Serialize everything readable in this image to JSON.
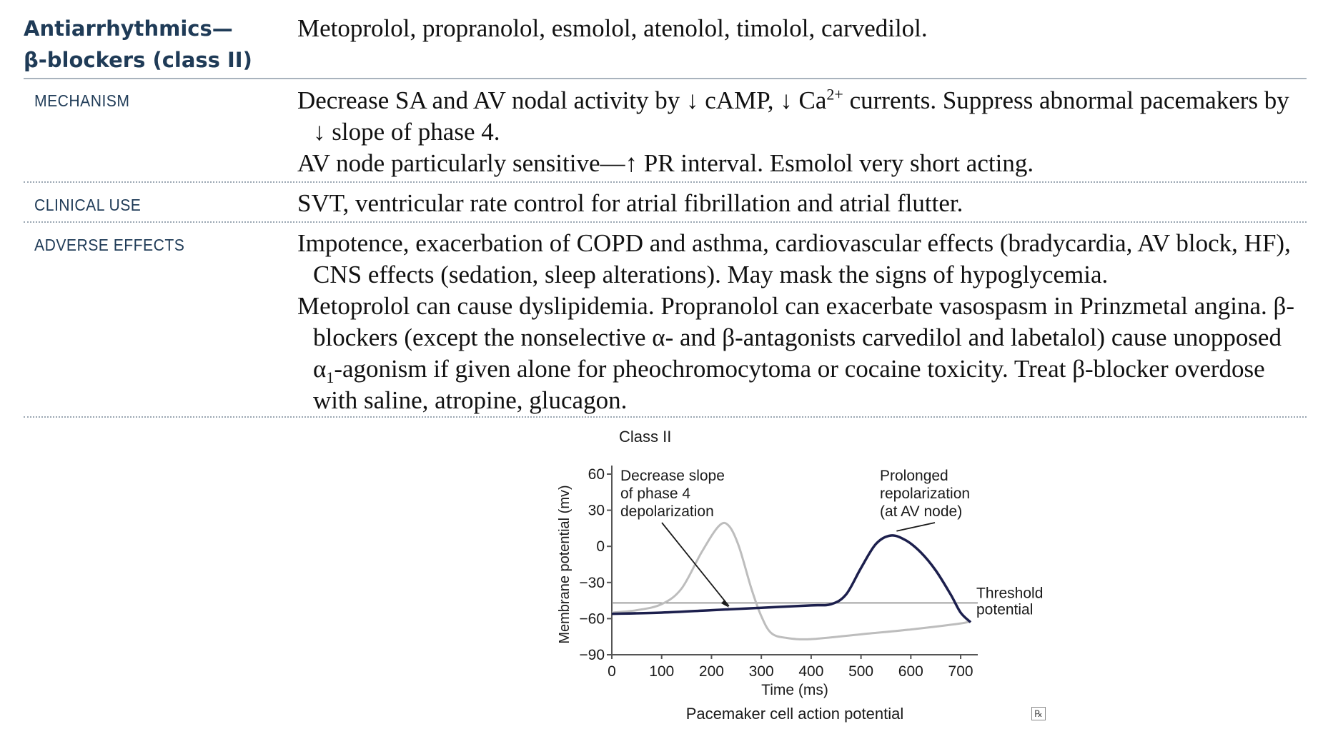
{
  "header": {
    "title_line1": "Antiarrhythmics—",
    "title_line2": "β-blockers (class II)",
    "drugs": "Metoprolol, propranolol, esmolol, atenolol, timolol, carvedilol."
  },
  "sections": {
    "mechanism": {
      "label": "MECHANISM",
      "p1_a": "Decrease SA and AV nodal activity by ↓ cAMP, ↓ Ca",
      "p1_sup": "2+",
      "p1_b": " currents. Suppress abnormal pacemakers by ↓ slope of phase 4.",
      "p2": "AV node particularly sensitive—↑ PR interval. Esmolol very short acting."
    },
    "clinical_use": {
      "label": "CLINICAL USE",
      "p1": "SVT, ventricular rate control for atrial fibrillation and atrial flutter."
    },
    "adverse_effects": {
      "label": "ADVERSE EFFECTS",
      "p1": "Impotence, exacerbation of COPD and asthma, cardiovascular effects (bradycardia, AV block, HF), CNS effects (sedation, sleep alterations). May mask the signs of hypoglycemia.",
      "p2_a": "Metoprolol can cause dyslipidemia. Propranolol can exacerbate vasospasm in Prinzmetal angina. β-blockers (except the nonselective α- and β-antagonists carvedilol and labetalol) cause unopposed α",
      "p2_sub": "1",
      "p2_b": "-agonism if given alone for pheochromocytoma or cocaine toxicity. Treat β-blocker overdose with saline, atropine, glucagon."
    }
  },
  "chart_data": {
    "type": "line",
    "title": "Class II",
    "caption": "Pacemaker cell action potential",
    "xlabel": "Time (ms)",
    "ylabel": "Membrane potential (mv)",
    "xlim": [
      0,
      720
    ],
    "ylim": [
      -90,
      60
    ],
    "x_ticks": [
      "0",
      "100",
      "200",
      "300",
      "400",
      "500",
      "600",
      "700"
    ],
    "y_ticks": [
      "60",
      "30",
      "0",
      "−30",
      "−60",
      "−90"
    ],
    "threshold": -47,
    "series": [
      {
        "style": "gray",
        "color": "#bdbdbd",
        "points": [
          [
            0,
            -55
          ],
          [
            50,
            -53
          ],
          [
            100,
            -48
          ],
          [
            140,
            -35
          ],
          [
            180,
            -5
          ],
          [
            215,
            17
          ],
          [
            235,
            17
          ],
          [
            255,
            0
          ],
          [
            280,
            -35
          ],
          [
            300,
            -58
          ],
          [
            320,
            -72
          ],
          [
            350,
            -76
          ],
          [
            400,
            -77
          ],
          [
            500,
            -73
          ],
          [
            600,
            -69
          ],
          [
            700,
            -64
          ],
          [
            720,
            -62
          ]
        ]
      },
      {
        "style": "dark",
        "color": "#1c1f4d",
        "points": [
          [
            0,
            -56
          ],
          [
            100,
            -55
          ],
          [
            200,
            -53
          ],
          [
            300,
            -51
          ],
          [
            400,
            -49
          ],
          [
            440,
            -48
          ],
          [
            470,
            -40
          ],
          [
            500,
            -18
          ],
          [
            530,
            2
          ],
          [
            560,
            9
          ],
          [
            590,
            5
          ],
          [
            620,
            -5
          ],
          [
            650,
            -20
          ],
          [
            680,
            -40
          ],
          [
            700,
            -55
          ],
          [
            720,
            -63
          ]
        ]
      }
    ],
    "annotations": [
      {
        "text_lines": [
          "Decrease slope",
          "of phase 4",
          "depolarization"
        ],
        "target_x": 235,
        "target_y": -52
      },
      {
        "text_lines": [
          "Prolonged",
          "repolarization",
          "(at AV node)"
        ],
        "target_x": 580,
        "target_y": 8
      },
      {
        "text_lines": [
          "Threshold",
          "potential"
        ]
      }
    ],
    "axis_color": "#555555",
    "threshold_color": "#8a8a8a"
  },
  "logo_text": "℞"
}
